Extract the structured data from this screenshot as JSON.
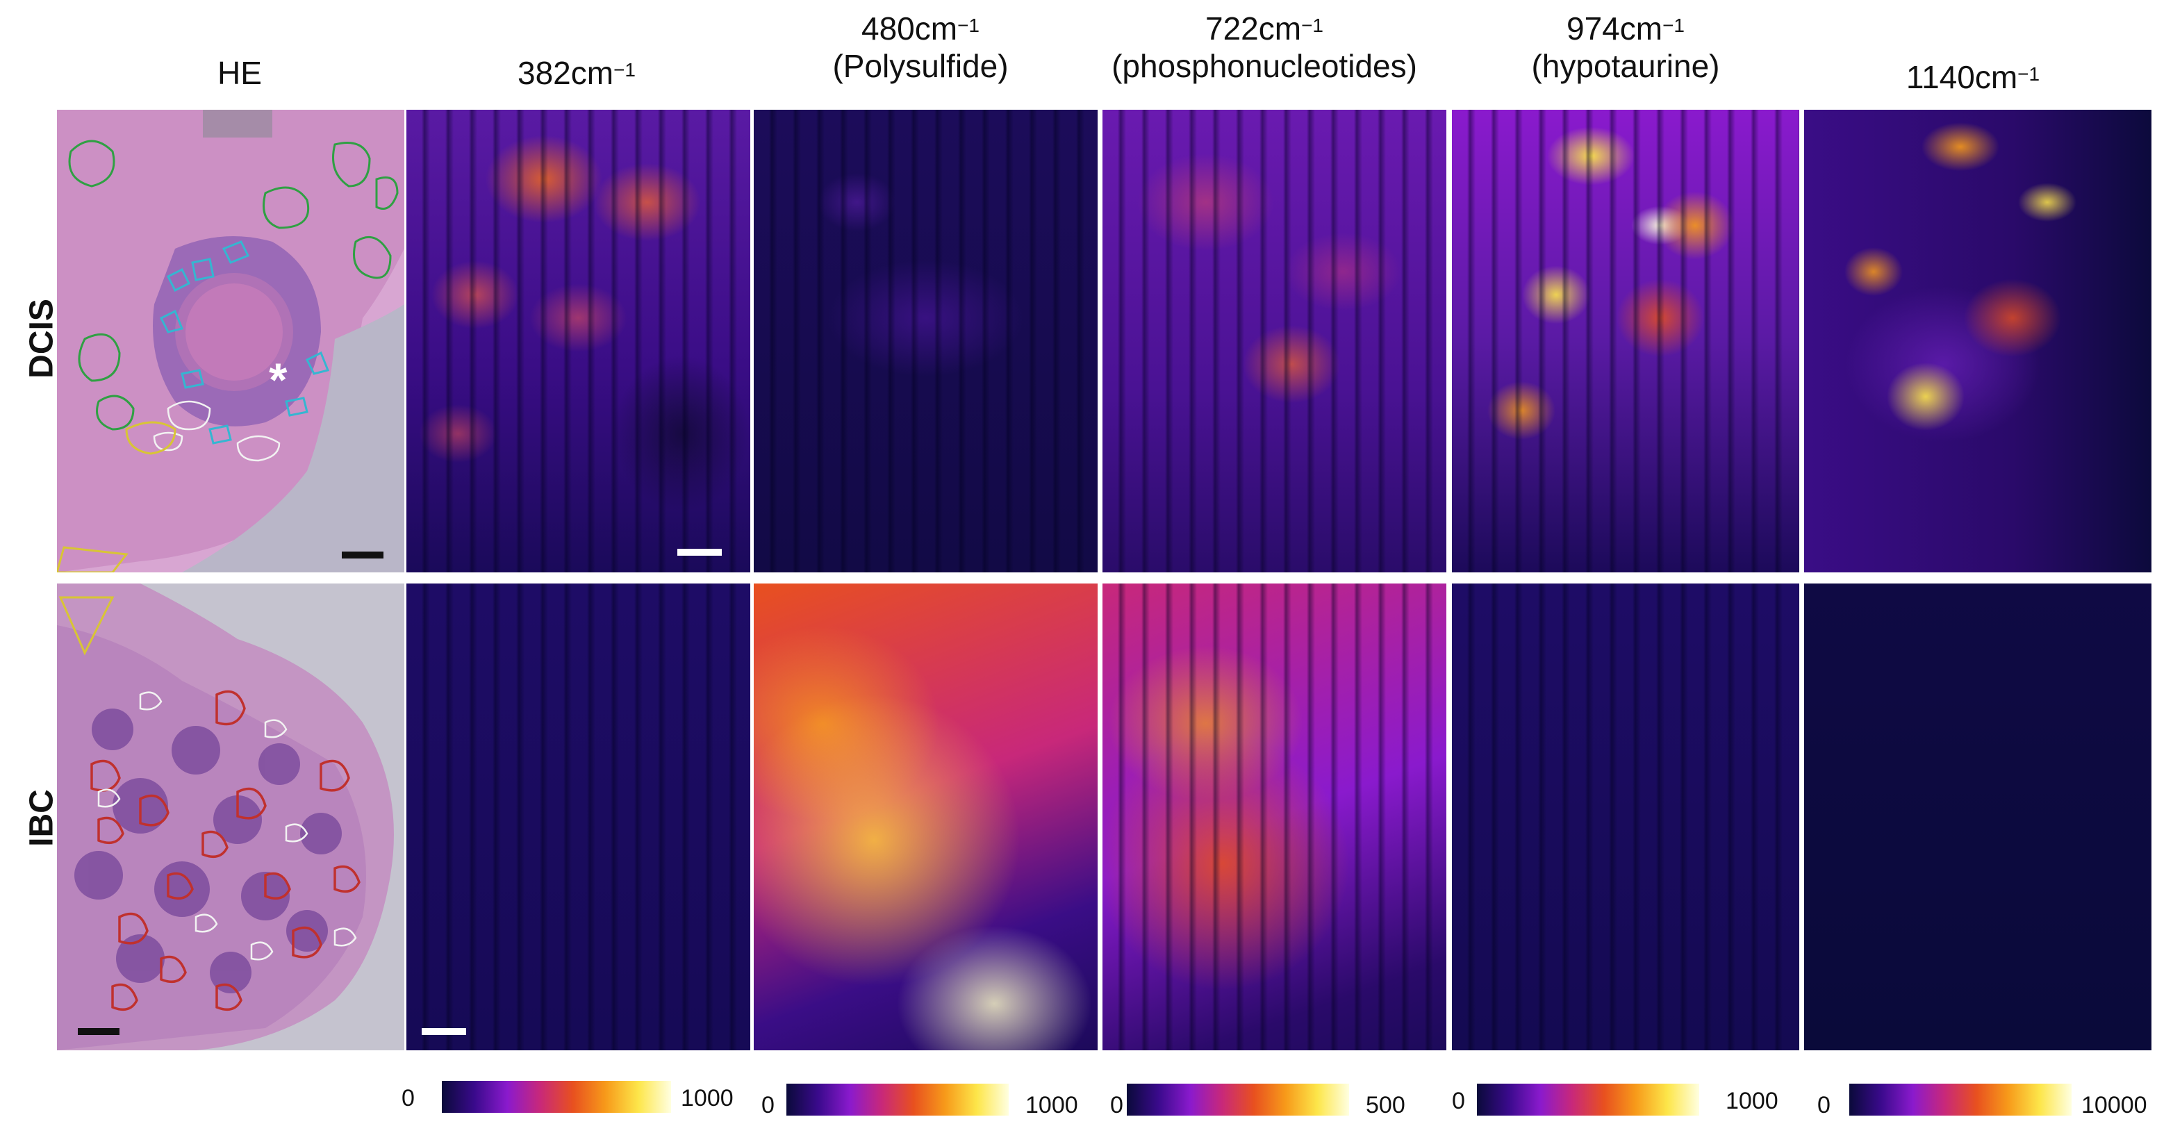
{
  "columns": [
    {
      "id": "he",
      "line1": "HE",
      "line2": ""
    },
    {
      "id": "c382",
      "line1": "382cm",
      "sup": "−1",
      "line2": ""
    },
    {
      "id": "c480",
      "line1": "480cm",
      "sup": "−1",
      "line2": "(Polysulfide)"
    },
    {
      "id": "c722",
      "line1": "722cm",
      "sup": "−1",
      "line2": "(phosphonucleotides)"
    },
    {
      "id": "c974",
      "line1": "974cm",
      "sup": "−1",
      "line2": "(hypotaurine)"
    },
    {
      "id": "c1140",
      "line1": "1140cm",
      "sup": "−1",
      "line2": ""
    }
  ],
  "rows": [
    {
      "id": "dcis",
      "label": "DCIS"
    },
    {
      "id": "ibc",
      "label": "IBC"
    }
  ],
  "he_marker": "*",
  "colorbars": [
    {
      "min": "0",
      "max": "1000"
    },
    {
      "min": "0",
      "max": "1000"
    },
    {
      "min": "0",
      "max": "500"
    },
    {
      "min": "0",
      "max": "1000"
    },
    {
      "min": "0",
      "max": "10000"
    }
  ],
  "colors": {
    "colormap": [
      "#0a0a3a",
      "#3a0a8c",
      "#8a1acd",
      "#c8287a",
      "#e8501f",
      "#f79a1a",
      "#fde64a",
      "#ffffe0"
    ],
    "he_tissue": "#c98fc3",
    "he_nuclei": "#7a4a9c",
    "outline_green": "#2fa043",
    "outline_cyan": "#35b6d1",
    "outline_yellow": "#d8c535",
    "outline_red": "#c0312e",
    "outline_white": "#f2f2f2"
  }
}
